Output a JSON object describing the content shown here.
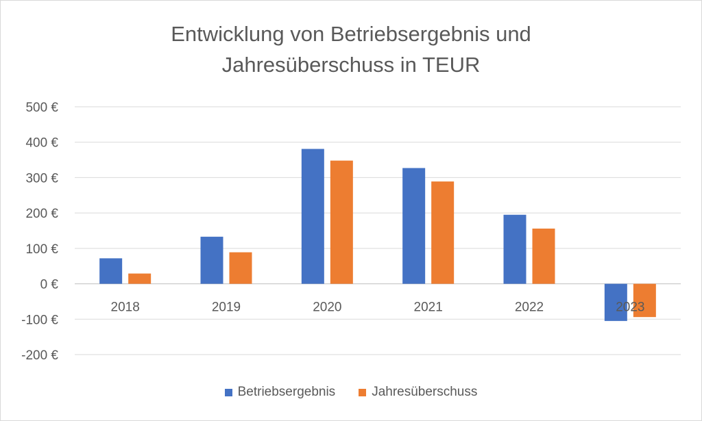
{
  "chart_data": {
    "type": "bar",
    "title": "Entwicklung von Betriebsergebnis und Jahresüberschuss in TEUR",
    "title_lines": [
      "Entwicklung von Betriebsergebnis und",
      "Jahresüberschuss in TEUR"
    ],
    "categories": [
      "2018",
      "2019",
      "2020",
      "2021",
      "2022",
      "2023"
    ],
    "series": [
      {
        "name": "Betriebsergebnis",
        "color": "#4472C4",
        "values": [
          72,
          133,
          381,
          327,
          195,
          -105
        ]
      },
      {
        "name": "Jahresüberschuss",
        "color": "#ED7D31",
        "values": [
          29,
          89,
          348,
          289,
          156,
          -94
        ]
      }
    ],
    "yticks": [
      500,
      400,
      300,
      200,
      100,
      0,
      -100,
      -200
    ],
    "ytick_labels": [
      "500 €",
      "400 €",
      "300 €",
      "200 €",
      "100 €",
      "0 €",
      "-100 €",
      "-200 €"
    ],
    "ylim": [
      -200,
      500
    ],
    "grid": true,
    "legend_position": "bottom",
    "xlabel": "",
    "ylabel": ""
  }
}
